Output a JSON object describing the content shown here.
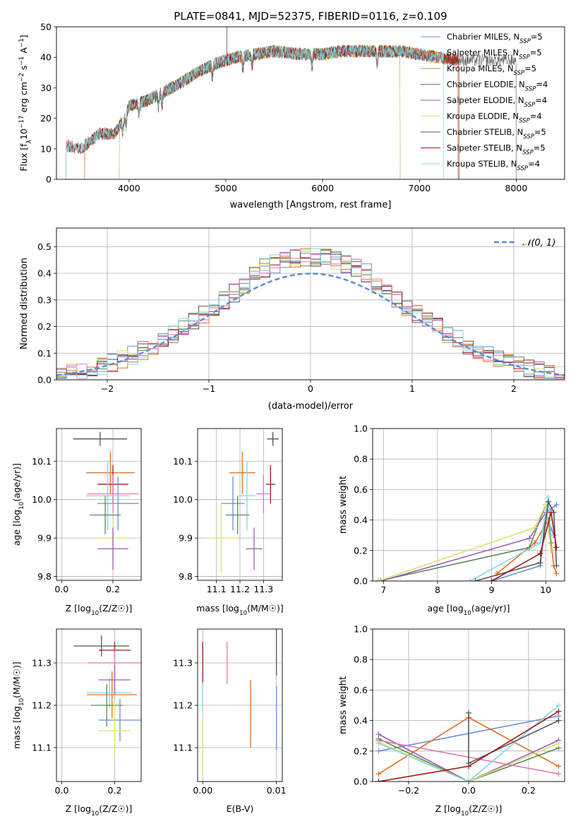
{
  "title": "PLATE=0841, MJD=52375, FIBERID=0116, z=0.109",
  "colors": {
    "Chabrier MILES": "#6a8fd4",
    "Salpeter MILES": "#e06f1f",
    "Kroupa MILES": "#c78a2e",
    "Chabrier ELODIE": "#5a8a5a",
    "Salpeter ELODIE": "#a05ab4",
    "Kroupa ELODIE": "#d9e36a",
    "Chabrier STELIB": "#555555",
    "Salpeter STELIB": "#a01818",
    "Kroupa STELIB": "#80d8e0",
    "pink": "#e07ab4"
  },
  "chart_data": [
    {
      "id": "spectrum",
      "type": "line",
      "xlabel": "wavelength [Angstrom, rest frame]",
      "ylabel": "Flux [f_λ10^-17 erg cm^-2 s^-1 A^-1]",
      "xlim": [
        3250,
        8500
      ],
      "ylim": [
        0,
        50
      ],
      "xticks": [
        4000,
        5000,
        6000,
        7000,
        8000
      ],
      "yticks": [
        0,
        10,
        20,
        30,
        40,
        50
      ],
      "legend_position": "top-right",
      "series": [
        {
          "name": "Chabrier MILES",
          "sub": "SSP",
          "n": 5
        },
        {
          "name": "Salpeter MILES",
          "sub": "SSP",
          "n": 5
        },
        {
          "name": "Kroupa MILES",
          "sub": "SSP",
          "n": 5
        },
        {
          "name": "Chabrier ELODIE",
          "sub": "SSP",
          "n": 4
        },
        {
          "name": "Salpeter ELODIE",
          "sub": "SSP",
          "n": 4
        },
        {
          "name": "Kroupa ELODIE",
          "sub": "SSP",
          "n": 4
        },
        {
          "name": "Chabrier STELIB",
          "sub": "SSP",
          "n": 5
        },
        {
          "name": "Salpeter STELIB",
          "sub": "SSP",
          "n": 5
        },
        {
          "name": "Kroupa STELIB",
          "sub": "SSP",
          "n": 4
        }
      ],
      "continuum": [
        [
          3350,
          11
        ],
        [
          3500,
          10
        ],
        [
          3700,
          15
        ],
        [
          3850,
          15
        ],
        [
          3950,
          20
        ],
        [
          4000,
          24
        ],
        [
          4200,
          26
        ],
        [
          4500,
          31
        ],
        [
          4700,
          35
        ],
        [
          4900,
          38
        ],
        [
          5100,
          40
        ],
        [
          5300,
          41
        ],
        [
          5500,
          42
        ],
        [
          5800,
          41
        ],
        [
          6000,
          41
        ],
        [
          6200,
          42
        ],
        [
          6500,
          42
        ],
        [
          6800,
          42
        ],
        [
          7000,
          41
        ],
        [
          7200,
          40
        ],
        [
          7400,
          39
        ]
      ],
      "model_ranges": {
        "MILES": [
          3540,
          7410
        ],
        "ELODIE": [
          3900,
          6800
        ],
        "STELIB": [
          3350,
          8000
        ]
      }
    },
    {
      "id": "residuals",
      "type": "histogram",
      "xlabel": "(data-model)/error",
      "ylabel": "Normed distribution",
      "xlim": [
        -2.5,
        2.5
      ],
      "ylim": [
        0,
        0.57
      ],
      "xticks": [
        -2,
        -1,
        0,
        1,
        2
      ],
      "yticks": [
        0.0,
        0.1,
        0.2,
        0.3,
        0.4,
        0.5
      ],
      "reference": {
        "name": "𝒩(0, 1)",
        "mean": 0,
        "sigma": 1
      },
      "bin_width": 0.1
    },
    {
      "id": "age-Z",
      "type": "errorbar",
      "xlabel": "Z [log10(Z/Z☉)]",
      "ylabel": "age [log10(age/yr)]",
      "xlim": [
        -0.02,
        0.31
      ],
      "ylim": [
        9.79,
        10.185
      ],
      "xticks": [
        0.0,
        0.2
      ],
      "yticks": [
        9.8,
        9.9,
        10.0,
        10.1
      ],
      "points": [
        {
          "model": "Chabrier STELIB",
          "x": 0.15,
          "xerr": 0.105,
          "y": 10.158,
          "yerr": 0.018
        },
        {
          "model": "Salpeter MILES",
          "x": 0.19,
          "xerr": 0.095,
          "y": 10.07,
          "yerr": 0.055
        },
        {
          "model": "Salpeter STELIB",
          "x": 0.2,
          "xerr": 0.06,
          "y": 10.04,
          "yerr": 0.05
        },
        {
          "model": "Chabrier MILES",
          "x": 0.22,
          "xerr": 0.08,
          "y": 9.99,
          "yerr": 0.07
        },
        {
          "model": "pink",
          "x": 0.2,
          "xerr": 0.1,
          "y": 10.015,
          "yerr": 0.05
        },
        {
          "model": "Kroupa STELIB",
          "x": 0.18,
          "xerr": 0.085,
          "y": 10.01,
          "yerr": 0.09
        },
        {
          "model": "Chabrier ELODIE",
          "x": 0.17,
          "xerr": 0.06,
          "y": 9.96,
          "yerr": 0.05
        },
        {
          "model": "Kroupa ELODIE",
          "x": 0.2,
          "xerr": 0.06,
          "y": 9.9,
          "yerr": 0.05
        },
        {
          "model": "Salpeter ELODIE",
          "x": 0.2,
          "xerr": 0.06,
          "y": 9.872,
          "yerr": 0.055
        }
      ]
    },
    {
      "id": "age-mass",
      "type": "errorbar",
      "xlabel": "mass [log10(M/M☉)]",
      "ylim": [
        9.79,
        10.185
      ],
      "xlim": [
        11.02,
        11.38
      ],
      "xticks": [
        11.1,
        11.2,
        11.3
      ],
      "yticks": [
        9.8,
        9.9,
        10.0,
        10.1
      ],
      "points": [
        {
          "model": "Chabrier STELIB",
          "x": 11.34,
          "xerr": 0.025,
          "y": 10.158,
          "yerr": 0.018
        },
        {
          "model": "Salpeter MILES",
          "x": 11.21,
          "xerr": 0.055,
          "y": 10.07,
          "yerr": 0.055
        },
        {
          "model": "Salpeter STELIB",
          "x": 11.33,
          "xerr": 0.02,
          "y": 10.04,
          "yerr": 0.05
        },
        {
          "model": "Chabrier MILES",
          "x": 11.17,
          "xerr": 0.05,
          "y": 9.99,
          "yerr": 0.07
        },
        {
          "model": "pink",
          "x": 11.3,
          "xerr": 0.03,
          "y": 10.015,
          "yerr": 0.05
        },
        {
          "model": "Kroupa STELIB",
          "x": 11.23,
          "xerr": 0.035,
          "y": 10.01,
          "yerr": 0.09
        },
        {
          "model": "Chabrier ELODIE",
          "x": 11.19,
          "xerr": 0.05,
          "y": 9.96,
          "yerr": 0.05
        },
        {
          "model": "Kroupa ELODIE",
          "x": 11.12,
          "xerr": 0.07,
          "y": 9.9,
          "yerr": 0.09
        },
        {
          "model": "Salpeter ELODIE",
          "x": 11.26,
          "xerr": 0.035,
          "y": 9.872,
          "yerr": 0.055
        }
      ]
    },
    {
      "id": "weight-age",
      "type": "line",
      "xlabel": "age  [log10(age/yr)]",
      "ylabel": "mass weight",
      "xlim": [
        6.8,
        10.35
      ],
      "ylim": [
        0,
        1
      ],
      "xticks": [
        7,
        8,
        9,
        10
      ],
      "yticks": [
        0.0,
        0.2,
        0.4,
        0.6,
        0.8,
        1.0
      ],
      "series": [
        {
          "model": "Chabrier MILES",
          "x": [
            9.0,
            9.9,
            10.0,
            10.2
          ],
          "y": [
            0.0,
            0.1,
            0.45,
            0.5
          ]
        },
        {
          "model": "Salpeter MILES",
          "x": [
            9.1,
            9.8,
            10.05,
            10.15,
            10.2
          ],
          "y": [
            0.05,
            0.25,
            0.4,
            0.1,
            0.05
          ]
        },
        {
          "model": "Chabrier ELODIE",
          "x": [
            6.9,
            9.7,
            10.0,
            10.1
          ],
          "y": [
            0.0,
            0.22,
            0.5,
            0.25
          ]
        },
        {
          "model": "Salpeter ELODIE",
          "x": [
            6.95,
            9.7,
            10.0,
            10.15
          ],
          "y": [
            0.0,
            0.28,
            0.45,
            0.3
          ]
        },
        {
          "model": "Kroupa ELODIE",
          "x": [
            6.9,
            9.8,
            10.0,
            10.1
          ],
          "y": [
            0.0,
            0.35,
            0.5,
            0.2
          ]
        },
        {
          "model": "Kroupa STELIB",
          "x": [
            8.6,
            9.9,
            10.05,
            10.1
          ],
          "y": [
            0.0,
            0.25,
            0.55,
            0.3
          ]
        },
        {
          "model": "Chabrier STELIB",
          "x": [
            8.7,
            9.9,
            10.05,
            10.15,
            10.2
          ],
          "y": [
            0.0,
            0.12,
            0.52,
            0.45,
            0.1
          ]
        },
        {
          "model": "Salpeter STELIB",
          "x": [
            9.0,
            9.9,
            10.1,
            10.2
          ],
          "y": [
            0.0,
            0.18,
            0.45,
            0.22
          ]
        }
      ]
    },
    {
      "id": "mass-Z",
      "type": "errorbar",
      "xlabel": "Z [log10(Z/Z☉)]",
      "ylabel": "mass [log10(M/M☉)]",
      "xlim": [
        -0.02,
        0.3
      ],
      "ylim": [
        11.02,
        11.38
      ],
      "xticks": [
        0.0,
        0.2
      ],
      "yticks": [
        11.1,
        11.2,
        11.3
      ],
      "points": [
        {
          "model": "Chabrier STELIB",
          "x": 0.15,
          "xerr": 0.105,
          "y": 11.34,
          "yerr": 0.025
        },
        {
          "model": "Salpeter STELIB",
          "x": 0.2,
          "xerr": 0.06,
          "y": 11.33,
          "yerr": 0.02
        },
        {
          "model": "pink",
          "x": 0.2,
          "xerr": 0.1,
          "y": 11.3,
          "yerr": 0.03
        },
        {
          "model": "Salpeter MILES",
          "x": 0.19,
          "xerr": 0.095,
          "y": 11.225,
          "yerr": 0.055
        },
        {
          "model": "Kroupa STELIB",
          "x": 0.18,
          "xerr": 0.085,
          "y": 11.23,
          "yerr": 0.035
        },
        {
          "model": "Chabrier ELODIE",
          "x": 0.17,
          "xerr": 0.06,
          "y": 11.2,
          "yerr": 0.05
        },
        {
          "model": "Chabrier MILES",
          "x": 0.22,
          "xerr": 0.08,
          "y": 11.165,
          "yerr": 0.05
        },
        {
          "model": "Kroupa ELODIE",
          "x": 0.2,
          "xerr": 0.06,
          "y": 11.14,
          "yerr": 0.07
        },
        {
          "model": "Salpeter ELODIE",
          "x": 0.2,
          "xerr": 0.06,
          "y": 11.26,
          "yerr": 0.035
        }
      ]
    },
    {
      "id": "mass-EBV",
      "type": "errorbar",
      "xlabel": "E(B-V)",
      "xlim": [
        -0.0007,
        0.0108
      ],
      "ylim": [
        11.02,
        11.38
      ],
      "xticks": [
        0.0,
        0.01
      ],
      "yticks": [
        11.1,
        11.2,
        11.3
      ],
      "points": [
        {
          "model": "Salpeter STELIB",
          "x": 0.0,
          "xerr": 0,
          "y": 11.3,
          "yerr": 0.05
        },
        {
          "model": "Kroupa STELIB",
          "x": 0.0,
          "xerr": 0,
          "y": 11.22,
          "yerr": 0.035
        },
        {
          "model": "Kroupa ELODIE",
          "x": 0.0,
          "xerr": 0,
          "y": 11.1,
          "yerr": 0.07
        },
        {
          "model": "pink",
          "x": 0.0033,
          "xerr": 0,
          "y": 11.3,
          "yerr": 0.05
        },
        {
          "model": "Salpeter MILES",
          "x": 0.0065,
          "xerr": 0,
          "y": 11.18,
          "yerr": 0.08
        },
        {
          "model": "Chabrier STELIB",
          "x": 0.01,
          "xerr": 0,
          "y": 11.33,
          "yerr": 0.06
        },
        {
          "model": "Chabrier MILES",
          "x": 0.01,
          "xerr": 0,
          "y": 11.17,
          "yerr": 0.075
        }
      ]
    },
    {
      "id": "weight-Z",
      "type": "line",
      "xlabel": "Z [log10(Z/Z☉)]",
      "ylabel": "mass weight",
      "xlim": [
        -0.32,
        0.32
      ],
      "ylim": [
        0,
        1
      ],
      "xticks": [
        -0.2,
        0.0,
        0.2
      ],
      "yticks": [
        0.0,
        0.2,
        0.4,
        0.6,
        0.8,
        1.0
      ],
      "series": [
        {
          "model": "Chabrier MILES",
          "x": [
            -0.3,
            0.3
          ],
          "y": [
            0.2,
            0.43
          ]
        },
        {
          "model": "Salpeter MILES",
          "x": [
            -0.3,
            0.0,
            0.3
          ],
          "y": [
            0.05,
            0.42,
            0.1
          ]
        },
        {
          "model": "Chabrier ELODIE",
          "x": [
            -0.3,
            0.0,
            0.3
          ],
          "y": [
            0.28,
            0.0,
            0.22
          ]
        },
        {
          "model": "Salpeter ELODIE",
          "x": [
            -0.3,
            0.0,
            0.3
          ],
          "y": [
            0.31,
            0.0,
            0.27
          ]
        },
        {
          "model": "Kroupa ELODIE",
          "x": [
            -0.3,
            0.0,
            0.3
          ],
          "y": [
            0.26,
            0.0,
            0.25
          ]
        },
        {
          "model": "pink",
          "x": [
            -0.3,
            0.3
          ],
          "y": [
            0.27,
            0.05
          ]
        },
        {
          "model": "Kroupa STELIB",
          "x": [
            -0.3,
            0.0,
            0.3
          ],
          "y": [
            0.25,
            0.0,
            0.5
          ]
        },
        {
          "model": "Chabrier STELIB",
          "x": [
            0.0,
            0.0,
            0.3
          ],
          "y": [
            0.45,
            0.12,
            0.4
          ]
        },
        {
          "model": "Salpeter STELIB",
          "x": [
            -0.3,
            0.0,
            0.3
          ],
          "y": [
            0.0,
            0.1,
            0.46
          ]
        }
      ]
    }
  ]
}
